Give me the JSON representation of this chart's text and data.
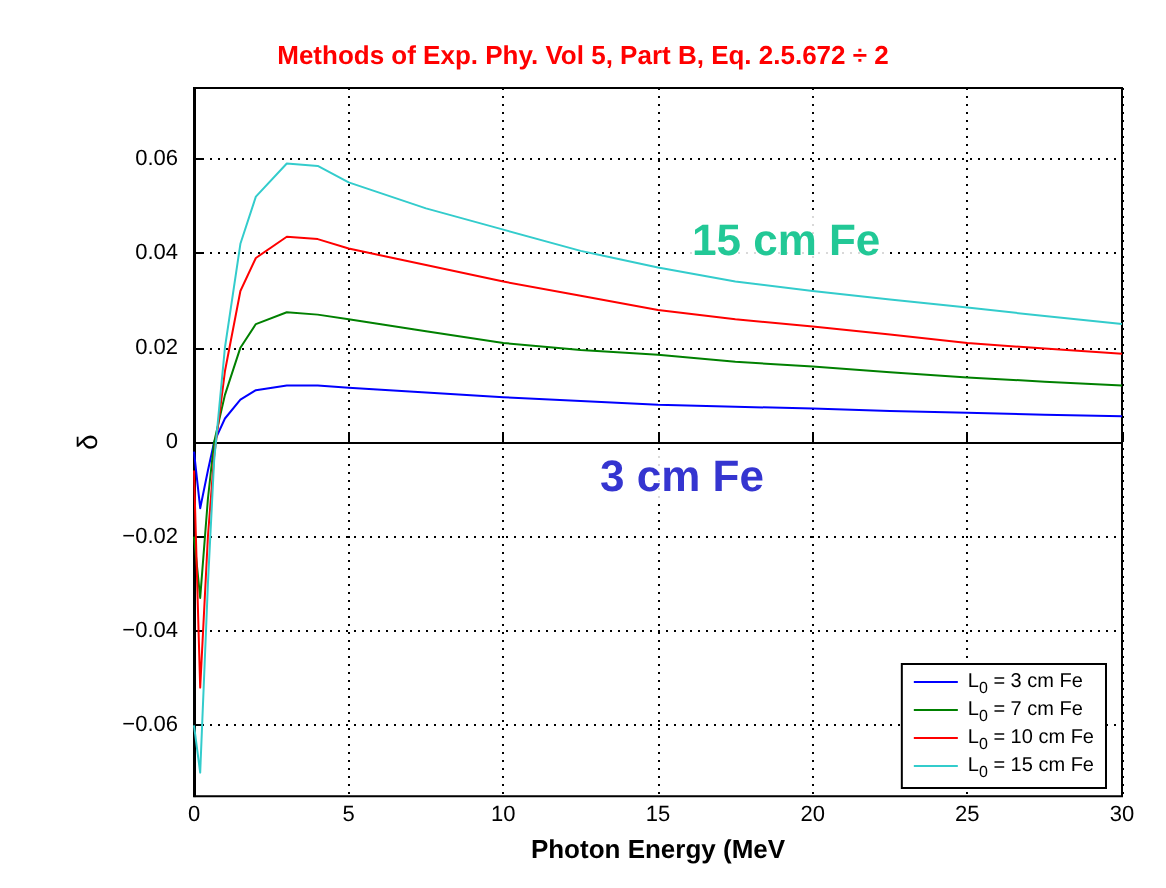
{
  "chart_data": {
    "type": "line",
    "title": "Methods of Exp. Phy. Vol 5, Part B, Eq. 2.5.672 ÷ 2",
    "xlabel": "Photon Energy (MeV",
    "ylabel": "δ",
    "x": [
      0,
      0.2,
      0.45,
      0.65,
      1,
      1.5,
      2,
      3,
      4,
      5,
      7.5,
      10,
      12.5,
      15,
      17.5,
      20,
      22.5,
      25,
      27.5,
      30
    ],
    "series": [
      {
        "name": "L$_{0}$ = 3 cm Fe",
        "color": "#0000ff",
        "values": [
          -0.002,
          -0.014,
          -0.006,
          0,
          0.005,
          0.009,
          0.011,
          0.012,
          0.012,
          0.0115,
          0.0105,
          0.0095,
          0.0087,
          0.0079,
          0.0075,
          0.0071,
          0.0066,
          0.0062,
          0.0058,
          0.0055
        ]
      },
      {
        "name": "L$_{0}$ = 7 cm Fe",
        "color": "#008000",
        "values": [
          -0.02,
          -0.033,
          -0.012,
          0,
          0.01,
          0.02,
          0.025,
          0.0275,
          0.027,
          0.026,
          0.0235,
          0.021,
          0.0195,
          0.0185,
          0.017,
          0.016,
          0.0148,
          0.0137,
          0.0128,
          0.012
        ]
      },
      {
        "name": "L$_{0}$ = 10 cm Fe",
        "color": "#ff0000",
        "values": [
          -0.006,
          -0.052,
          -0.02,
          -0.003,
          0.015,
          0.032,
          0.039,
          0.0435,
          0.043,
          0.041,
          0.0375,
          0.034,
          0.031,
          0.028,
          0.026,
          0.0245,
          0.0228,
          0.021,
          0.0198,
          0.0187
        ]
      },
      {
        "name": "L$_{0}$ = 15 cm Fe",
        "color": "#33cccc",
        "values": [
          -0.06,
          -0.07,
          -0.03,
          -0.004,
          0.02,
          0.042,
          0.052,
          0.059,
          0.0585,
          0.055,
          0.0495,
          0.045,
          0.0405,
          0.037,
          0.034,
          0.032,
          0.0302,
          0.0285,
          0.0267,
          0.025
        ]
      }
    ],
    "annotations": [
      "15 cm Fe",
      "3 cm Fe"
    ],
    "xlim": [
      0,
      30
    ],
    "xticks": [
      0,
      5,
      10,
      15,
      20,
      25,
      30
    ],
    "ylim": [
      -0.075,
      0.075
    ],
    "yticks": [
      -0.06,
      -0.04,
      -0.02,
      0,
      0.02,
      0.04,
      0.06
    ],
    "grid": true,
    "legend": "bottom right",
    "line_style": "solid"
  }
}
